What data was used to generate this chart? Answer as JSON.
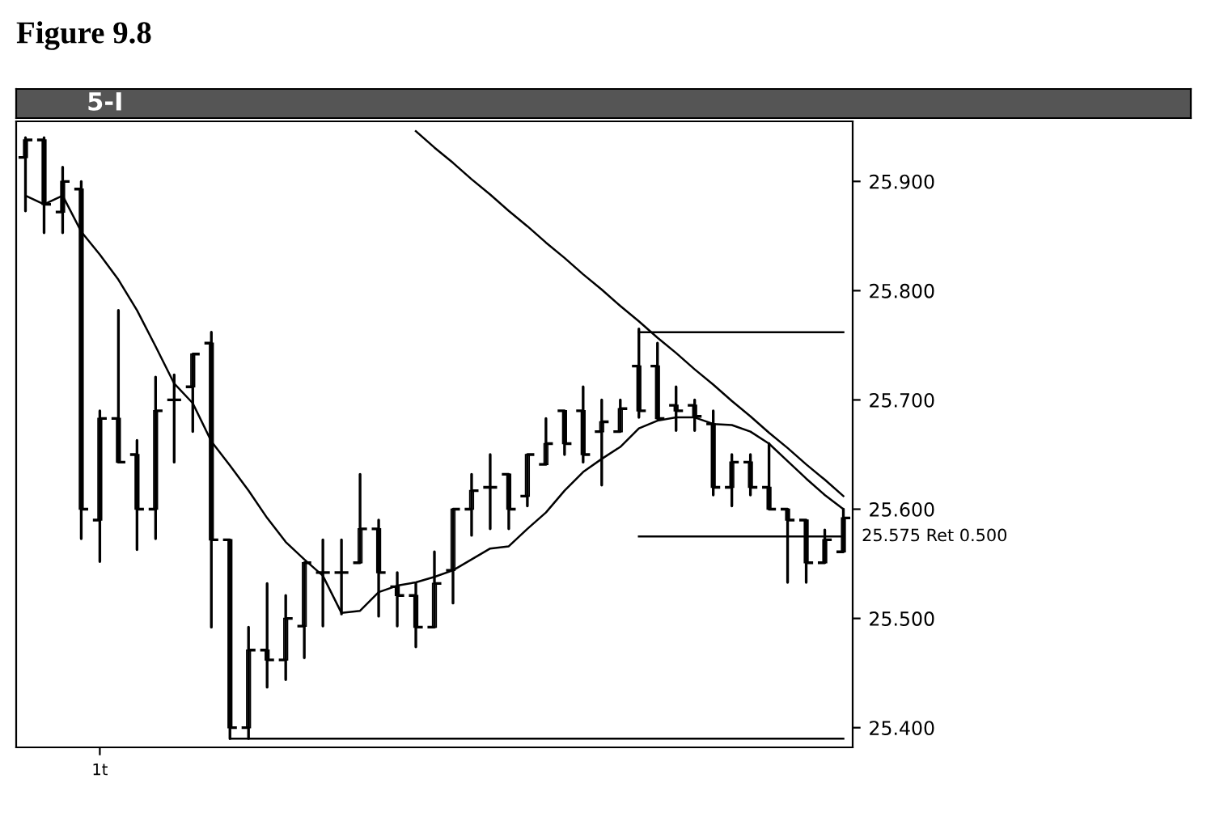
{
  "chart_data": {
    "type": "candlestick",
    "title": "Figure 9.8",
    "subtitle": "5-I",
    "categories": [
      null,
      null,
      null,
      null,
      "1t",
      null,
      null,
      null,
      null,
      null,
      null,
      null,
      null,
      null,
      null,
      null,
      null,
      null,
      null,
      null,
      null,
      null,
      null,
      null,
      null,
      null,
      null,
      null,
      null,
      null,
      null,
      null,
      null,
      null,
      null,
      null,
      null,
      null,
      null,
      null,
      null,
      null,
      null,
      null,
      null
    ],
    "ohlc": [
      [
        25.922,
        25.94,
        25.873,
        25.938
      ],
      [
        25.938,
        25.94,
        25.853,
        25.879
      ],
      [
        25.872,
        25.913,
        25.853,
        25.9
      ],
      [
        25.893,
        25.9,
        25.573,
        25.6
      ],
      [
        25.59,
        25.69,
        25.552,
        25.683
      ],
      [
        25.683,
        25.782,
        25.643,
        25.643
      ],
      [
        25.65,
        25.663,
        25.563,
        25.6
      ],
      [
        25.6,
        25.721,
        25.573,
        25.69
      ],
      [
        25.7,
        25.723,
        25.643,
        25.7
      ],
      [
        25.712,
        25.742,
        25.671,
        25.742
      ],
      [
        25.752,
        25.762,
        25.492,
        25.572
      ],
      [
        25.572,
        25.572,
        25.39,
        25.4
      ],
      [
        25.4,
        25.492,
        25.39,
        25.471
      ],
      [
        25.471,
        25.532,
        25.437,
        25.462
      ],
      [
        25.462,
        25.521,
        25.444,
        25.5
      ],
      [
        25.493,
        25.551,
        25.464,
        25.551
      ],
      [
        25.542,
        25.572,
        25.493,
        25.542
      ],
      [
        25.542,
        25.572,
        25.504,
        25.542
      ],
      [
        25.551,
        25.632,
        25.551,
        25.582
      ],
      [
        25.582,
        25.59,
        25.502,
        25.542
      ],
      [
        25.529,
        25.542,
        25.493,
        25.521
      ],
      [
        25.521,
        25.532,
        25.474,
        25.492
      ],
      [
        25.492,
        25.561,
        25.492,
        25.532
      ],
      [
        25.544,
        25.6,
        25.514,
        25.6
      ],
      [
        25.6,
        25.632,
        25.576,
        25.617
      ],
      [
        25.62,
        25.65,
        25.582,
        25.62
      ],
      [
        25.632,
        25.632,
        25.582,
        25.6
      ],
      [
        25.612,
        25.65,
        25.603,
        25.65
      ],
      [
        25.641,
        25.683,
        25.641,
        25.66
      ],
      [
        25.69,
        25.69,
        25.65,
        25.66
      ],
      [
        25.69,
        25.712,
        25.643,
        25.65
      ],
      [
        25.671,
        25.7,
        25.622,
        25.68
      ],
      [
        25.671,
        25.7,
        25.671,
        25.692
      ],
      [
        25.731,
        25.765,
        25.684,
        25.69
      ],
      [
        25.731,
        25.752,
        25.683,
        25.683
      ],
      [
        25.695,
        25.712,
        25.672,
        25.69
      ],
      [
        25.695,
        25.7,
        25.672,
        25.685
      ],
      [
        25.678,
        25.69,
        25.613,
        25.62
      ],
      [
        25.62,
        25.65,
        25.603,
        25.643
      ],
      [
        25.643,
        25.65,
        25.613,
        25.62
      ],
      [
        25.62,
        25.66,
        25.6,
        25.6
      ],
      [
        25.6,
        25.6,
        25.533,
        25.59
      ],
      [
        25.59,
        25.59,
        25.533,
        25.551
      ],
      [
        25.551,
        25.581,
        25.551,
        25.572
      ],
      [
        25.561,
        25.6,
        25.561,
        25.592
      ]
    ],
    "color": "#000000",
    "series": [
      {
        "type": "line",
        "color": "#000000",
        "values": [
          25.887,
          25.879,
          25.887,
          25.854,
          25.833,
          25.81,
          25.782,
          25.749,
          25.715,
          25.697,
          25.662,
          25.64,
          25.617,
          25.592,
          25.57,
          25.554,
          25.539,
          25.505,
          25.507,
          25.524,
          25.53,
          25.533,
          25.538,
          25.544,
          25.554,
          25.564,
          25.566,
          25.582,
          25.597,
          25.617,
          25.634,
          25.646,
          25.657,
          25.674,
          25.681,
          25.684,
          25.684,
          25.678,
          25.677,
          25.671,
          25.66,
          25.644,
          25.628,
          25.613,
          25.6
        ]
      },
      {
        "type": "line",
        "color": "#000000",
        "values": [
          null,
          null,
          null,
          null,
          null,
          null,
          null,
          null,
          null,
          null,
          null,
          null,
          null,
          null,
          null,
          null,
          null,
          null,
          null,
          null,
          null,
          25.946,
          25.931,
          25.917,
          25.902,
          25.888,
          25.873,
          25.859,
          25.844,
          25.83,
          25.815,
          25.801,
          25.786,
          25.772,
          25.757,
          25.743,
          25.728,
          25.714,
          25.699,
          25.685,
          25.67,
          25.656,
          25.641,
          25.627,
          25.612
        ]
      },
      {
        "type": "line",
        "color": "#000000",
        "values": [
          null,
          null,
          null,
          null,
          null,
          null,
          null,
          null,
          null,
          null,
          null,
          null,
          null,
          null,
          null,
          null,
          null,
          null,
          null,
          null,
          null,
          null,
          null,
          null,
          null,
          null,
          null,
          null,
          null,
          null,
          null,
          null,
          null,
          25.762,
          25.762,
          25.762,
          25.762,
          25.762,
          25.762,
          25.762,
          25.762,
          25.762,
          25.762,
          25.762,
          25.762
        ]
      },
      {
        "type": "line",
        "color": "#000000",
        "values": [
          null,
          null,
          null,
          null,
          null,
          null,
          null,
          null,
          null,
          null,
          null,
          null,
          null,
          null,
          null,
          null,
          null,
          null,
          null,
          null,
          null,
          null,
          null,
          null,
          null,
          null,
          null,
          null,
          null,
          null,
          null,
          null,
          null,
          25.575,
          25.575,
          25.575,
          25.575,
          25.575,
          25.575,
          25.575,
          25.575,
          25.575,
          25.575,
          25.575,
          25.575
        ]
      },
      {
        "type": "line",
        "color": "#000000",
        "values": [
          null,
          null,
          null,
          null,
          null,
          null,
          null,
          null,
          null,
          null,
          null,
          25.39,
          25.39,
          25.39,
          25.39,
          25.39,
          25.39,
          25.39,
          25.39,
          25.39,
          25.39,
          25.39,
          25.39,
          25.39,
          25.39,
          25.39,
          25.39,
          25.39,
          25.39,
          25.39,
          25.39,
          25.39,
          25.39,
          25.39,
          25.39,
          25.39,
          25.39,
          25.39,
          25.39,
          25.39,
          25.39,
          25.39,
          25.39,
          25.39,
          25.39
        ]
      }
    ],
    "annotations": [
      "25.575 Ret 0.500"
    ],
    "ylim": [
      25.382,
      25.955
    ],
    "yticks": [
      {
        "value": 25.4,
        "label": "25.400"
      },
      {
        "value": 25.5,
        "label": "25.500"
      },
      {
        "value": 25.6,
        "label": "25.600"
      },
      {
        "value": 25.7,
        "label": "25.700"
      },
      {
        "value": 25.8,
        "label": "25.800"
      },
      {
        "value": 25.9,
        "label": "25.900"
      }
    ],
    "grid": false,
    "legend": false
  }
}
